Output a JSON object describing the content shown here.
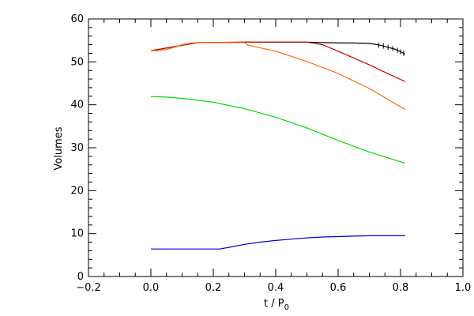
{
  "chart_data": {
    "type": "line",
    "title": "",
    "xlabel": "t / P",
    "xlabel_subscript": "0",
    "ylabel": "Volumes",
    "xlim": [
      -0.2,
      1.0
    ],
    "ylim": [
      0,
      60
    ],
    "x_ticks": [
      -0.2,
      0.0,
      0.2,
      0.4,
      0.6,
      0.8,
      1.0
    ],
    "x_tick_labels": [
      "−0.2",
      "0.0",
      "0.2",
      "0.4",
      "0.6",
      "0.8",
      "1.0"
    ],
    "y_ticks": [
      0,
      10,
      20,
      30,
      40,
      50,
      60
    ],
    "y_tick_labels": [
      "0",
      "10",
      "20",
      "30",
      "40",
      "50",
      "60"
    ],
    "grid": false,
    "legend": "none",
    "series": [
      {
        "color": "#000000",
        "x": [
          0.0,
          0.15,
          0.3,
          0.5,
          0.55,
          0.6,
          0.65,
          0.7,
          0.72,
          0.74,
          0.76,
          0.78,
          0.8,
          0.815
        ],
        "y": [
          52.6,
          54.5,
          54.6,
          54.6,
          54.5,
          54.4,
          54.4,
          54.3,
          54.1,
          53.8,
          53.4,
          53.0,
          52.4,
          51.8
        ]
      },
      {
        "color": "#cc0000",
        "x": [
          0.0,
          0.15,
          0.3,
          0.5,
          0.55,
          0.6,
          0.65,
          0.7,
          0.75,
          0.815
        ],
        "y": [
          52.6,
          54.5,
          54.6,
          54.6,
          54.0,
          52.5,
          50.9,
          49.3,
          47.6,
          45.4
        ]
      },
      {
        "color": "#ff6600",
        "x": [
          0.0,
          0.02,
          0.05,
          0.08,
          0.1,
          0.13,
          0.15,
          0.2,
          0.25,
          0.3,
          0.31,
          0.4,
          0.5,
          0.6,
          0.7,
          0.815
        ],
        "y": [
          52.6,
          52.6,
          52.9,
          53.5,
          54.0,
          54.4,
          54.5,
          54.5,
          54.5,
          54.5,
          53.9,
          52.5,
          50.1,
          47.3,
          43.8,
          38.9
        ]
      },
      {
        "color": "#00dd00",
        "x": [
          0.0,
          0.05,
          0.1,
          0.2,
          0.3,
          0.4,
          0.5,
          0.6,
          0.7,
          0.815
        ],
        "y": [
          41.9,
          41.8,
          41.5,
          40.6,
          39.1,
          37.1,
          34.6,
          31.7,
          29.0,
          26.4
        ]
      },
      {
        "color": "#0000cc",
        "x": [
          0.0,
          0.22,
          0.25,
          0.3,
          0.35,
          0.4,
          0.45,
          0.5,
          0.55,
          0.6,
          0.65,
          0.7,
          0.815
        ],
        "y": [
          6.4,
          6.4,
          6.8,
          7.5,
          8.0,
          8.4,
          8.7,
          9.0,
          9.2,
          9.3,
          9.4,
          9.5,
          9.5
        ]
      }
    ],
    "error_bar_series": {
      "color": "#000000",
      "x": [
        0.73,
        0.745,
        0.76,
        0.775,
        0.79,
        0.8,
        0.81
      ],
      "y": [
        53.9,
        53.7,
        53.4,
        53.1,
        52.7,
        52.3,
        52.0
      ],
      "err": [
        0.6,
        0.6,
        0.6,
        0.6,
        0.6,
        0.6,
        0.6
      ]
    }
  }
}
